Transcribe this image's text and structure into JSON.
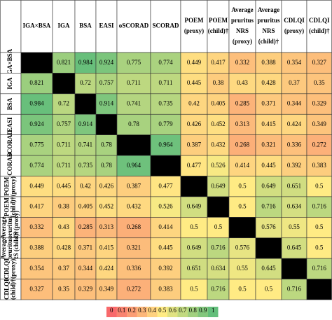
{
  "chart_data": {
    "type": "heatmap",
    "columns": [
      [
        "IGA×BSA"
      ],
      [
        "IGA"
      ],
      [
        "BSA"
      ],
      [
        "EASI"
      ],
      [
        "oSCORAD"
      ],
      [
        "SCORAD"
      ],
      [
        "POEM",
        "(proxy)"
      ],
      [
        "POEM",
        "(child)†"
      ],
      [
        "Average",
        "pruritus",
        "NRS",
        "(proxy)"
      ],
      [
        "Average",
        "pruritus",
        "NRS",
        "(child)†"
      ],
      [
        "CDLQI",
        "(proxy)"
      ],
      [
        "CDLQI",
        "(child)†"
      ]
    ],
    "rows": [
      [
        "IGA×BSA"
      ],
      [
        "IGA"
      ],
      [
        "BSA"
      ],
      [
        "EASI"
      ],
      [
        "oSCORAD"
      ],
      [
        "SCORAD"
      ],
      [
        "POEM",
        "(proxy)"
      ],
      [
        "POEM",
        "(child)†"
      ],
      [
        "Average",
        "pruritus",
        "NRS (proxy)"
      ],
      [
        "Average",
        "pruritus",
        "NRS (child)†"
      ],
      [
        "CDLQI",
        "(proxy)"
      ],
      [
        "CDLQI",
        "(child)†"
      ]
    ],
    "values": [
      [
        null,
        0.821,
        0.984,
        0.924,
        0.775,
        0.774,
        0.449,
        0.417,
        0.332,
        0.388,
        0.354,
        0.327
      ],
      [
        0.821,
        null,
        0.72,
        0.757,
        0.711,
        0.711,
        0.445,
        0.38,
        0.43,
        0.428,
        0.37,
        0.35
      ],
      [
        0.984,
        0.72,
        null,
        0.914,
        0.741,
        0.735,
        0.42,
        0.405,
        0.285,
        0.371,
        0.344,
        0.329
      ],
      [
        0.924,
        0.757,
        0.914,
        null,
        0.78,
        0.779,
        0.426,
        0.452,
        0.313,
        0.415,
        0.424,
        0.349
      ],
      [
        0.775,
        0.711,
        0.741,
        0.78,
        null,
        0.964,
        0.387,
        0.432,
        0.268,
        0.321,
        0.336,
        0.272
      ],
      [
        0.774,
        0.711,
        0.735,
        0.78,
        0.964,
        null,
        0.477,
        0.526,
        0.414,
        0.445,
        0.392,
        0.383
      ],
      [
        0.449,
        0.445,
        0.42,
        0.426,
        0.387,
        0.477,
        null,
        0.649,
        0.5,
        0.649,
        0.651,
        0.5
      ],
      [
        0.417,
        0.38,
        0.405,
        0.452,
        0.432,
        0.526,
        0.649,
        null,
        0.5,
        0.716,
        0.634,
        0.716
      ],
      [
        0.332,
        0.43,
        0.285,
        0.313,
        0.268,
        0.414,
        0.5,
        0.5,
        null,
        0.576,
        0.55,
        0.5
      ],
      [
        0.388,
        0.428,
        0.371,
        0.415,
        0.321,
        0.445,
        0.649,
        0.716,
        0.576,
        null,
        0.645,
        0.5
      ],
      [
        0.354,
        0.37,
        0.344,
        0.424,
        0.336,
        0.392,
        0.651,
        0.634,
        0.55,
        0.645,
        null,
        0.716
      ],
      [
        0.327,
        0.35,
        0.329,
        0.349,
        0.272,
        0.383,
        0.5,
        0.716,
        0.5,
        0.5,
        0.716,
        null
      ]
    ],
    "colorscale": [
      "#f8696b",
      "#ffeb84",
      "#63be7b"
    ],
    "missing_color": "#000000",
    "zlim": [
      0,
      1
    ],
    "legend_ticks": [
      0,
      0.1,
      0.2,
      0.3,
      0.4,
      0.5,
      0.6,
      0.7,
      0.8,
      0.9,
      1
    ]
  }
}
